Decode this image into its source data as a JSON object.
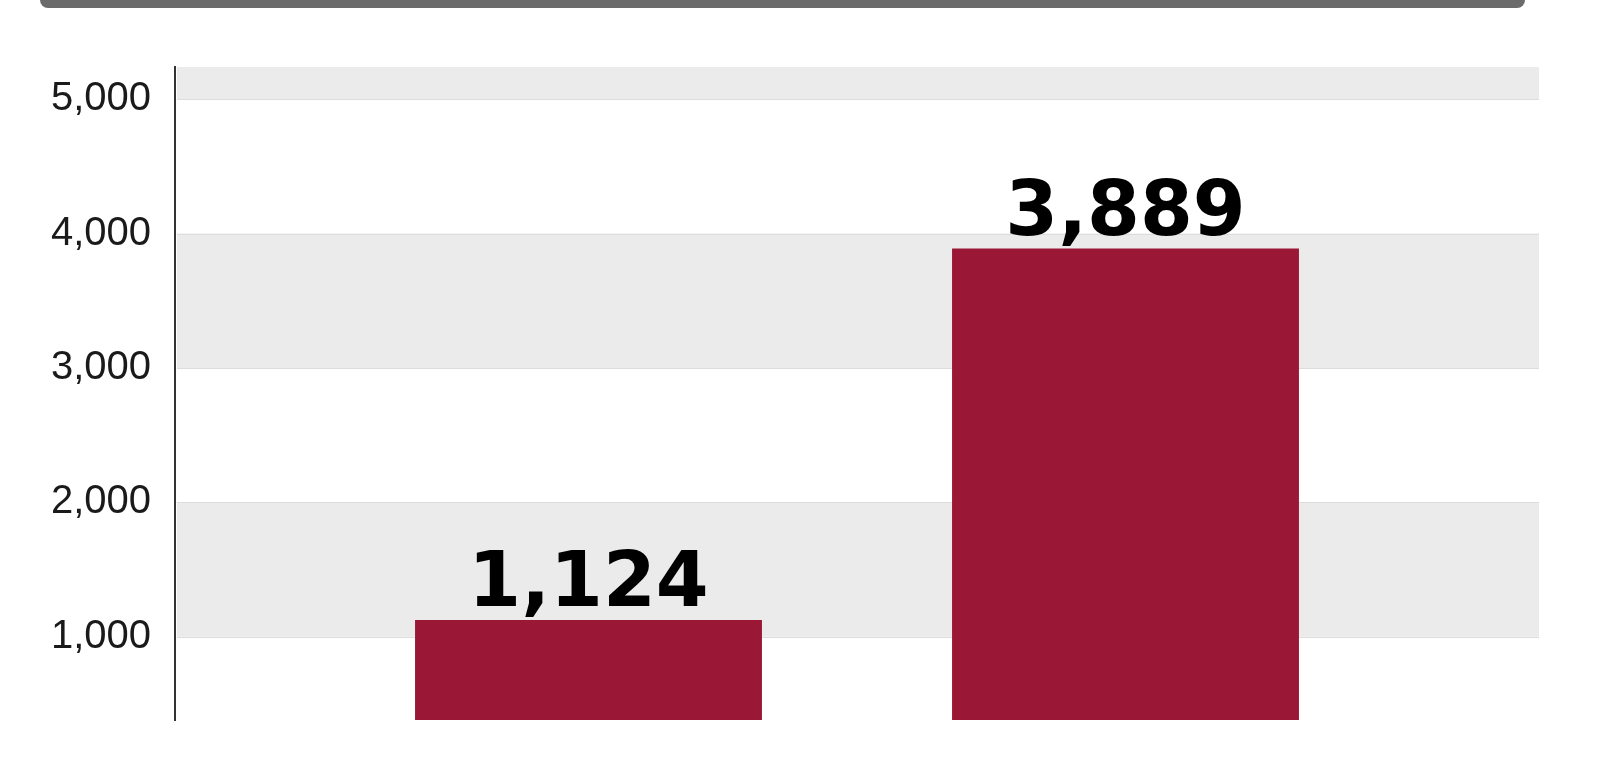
{
  "chart_data": {
    "type": "bar",
    "categories": [
      null,
      null
    ],
    "values": [
      1124,
      3889
    ],
    "color": "#9b1736",
    "value_labels": [
      "1,124",
      "3,889"
    ],
    "ylim": [
      380,
      5240
    ],
    "yticks": [
      {
        "value": 1000,
        "label": "1,000"
      },
      {
        "value": 2000,
        "label": "2,000"
      },
      {
        "value": 3000,
        "label": "3,000"
      },
      {
        "value": 4000,
        "label": "4,000"
      },
      {
        "value": 5000,
        "label": "5,000"
      }
    ],
    "grid": "y"
  }
}
